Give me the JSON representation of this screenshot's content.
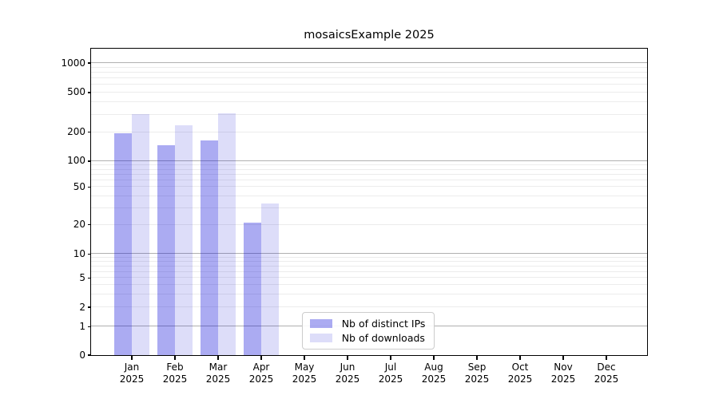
{
  "figure": {
    "background": "#ffffff",
    "title": "mosaicsExample 2025"
  },
  "chart_data": {
    "type": "bar",
    "title": "mosaicsExample 2025",
    "xlabel": "",
    "ylabel": "",
    "x_axis": {
      "categories": [
        "Jan",
        "Feb",
        "Mar",
        "Apr",
        "May",
        "Jun",
        "Jul",
        "Aug",
        "Sep",
        "Oct",
        "Nov",
        "Dec"
      ],
      "year_suffix": "2025"
    },
    "y_axis": {
      "scale": "symlog",
      "ticks": [
        0,
        1,
        2,
        5,
        10,
        20,
        50,
        100,
        200,
        500,
        1000
      ],
      "range": [
        0,
        1450
      ],
      "grid_major": true,
      "grid_minor": true
    },
    "series": [
      {
        "name": "Nb of distinct IPs",
        "fill": "rgba(0,0,215,0.33)",
        "solid_color": "#aaaaf2",
        "values": [
          195,
          147,
          165,
          21,
          0,
          0,
          0,
          0,
          0,
          0,
          0,
          0
        ]
      },
      {
        "name": "Nb of downloads",
        "fill": "rgba(0,0,210,0.135)",
        "solid_color": "#dcdcf9",
        "values": [
          300,
          235,
          310,
          33,
          0,
          0,
          0,
          0,
          0,
          0,
          0,
          0
        ]
      }
    ],
    "legend": {
      "position": "inside-lower-center-left",
      "entries": [
        "Nb of distinct IPs",
        "Nb of downloads"
      ]
    },
    "grid_colors": {
      "major": "#b0b0b0",
      "minor": "#ececec"
    }
  }
}
